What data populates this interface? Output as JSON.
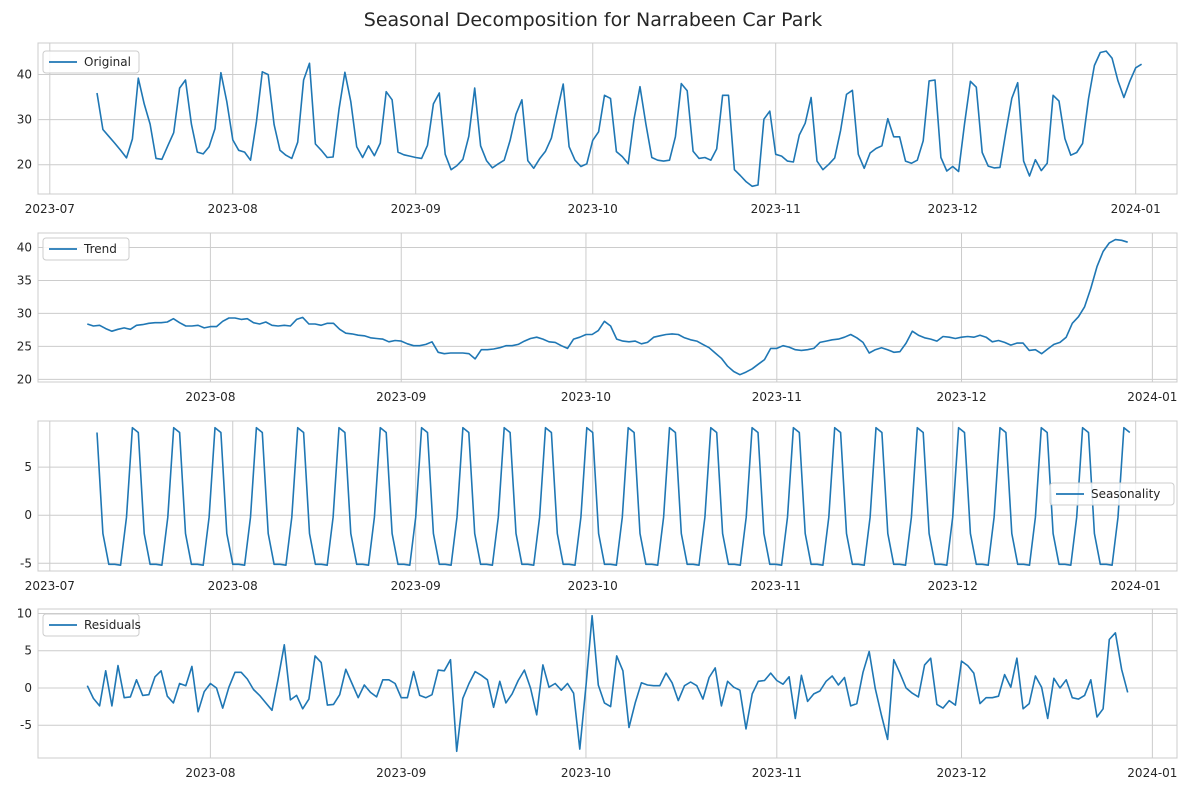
{
  "title": "Seasonal Decomposition for Narrabeen Car Park",
  "colors": {
    "line": "#1f77b4"
  },
  "chart_data": [
    {
      "type": "line",
      "name": "original",
      "legend": "Original",
      "legend_position": "upper-left",
      "grid": true,
      "xlim": [
        "2023-06-29",
        "2024-01-08"
      ],
      "ylim": [
        13.5,
        47
      ],
      "yticks": [
        20,
        30,
        40
      ],
      "xticks": [
        "2023-07-01",
        "2023-08-01",
        "2023-09-01",
        "2023-10-01",
        "2023-11-01",
        "2023-12-01",
        "2024-01-01"
      ],
      "xtick_labels": [
        "2023-07",
        "2023-08",
        "2023-09",
        "2023-10",
        "2023-11",
        "2023-12",
        "2024-01"
      ],
      "x_start": "2023-07-09",
      "values": [
        35.9,
        27.8,
        26.3,
        24.8,
        23.2,
        21.5,
        25.7,
        39.2,
        33.5,
        29.0,
        21.4,
        21.2,
        24.2,
        27.1,
        37.0,
        38.8,
        29.0,
        22.8,
        22.4,
        24.0,
        28.0,
        40.4,
        34.0,
        25.5,
        23.2,
        22.8,
        21.0,
        29.5,
        40.6,
        40.0,
        28.9,
        23.2,
        22.1,
        21.4,
        25.0,
        38.8,
        42.5,
        24.6,
        23.2,
        21.6,
        21.7,
        32.3,
        40.5,
        34.0,
        24.0,
        21.6,
        24.2,
        22.0,
        24.8,
        36.2,
        34.4,
        22.8,
        22.2,
        21.9,
        21.6,
        21.4,
        24.3,
        33.5,
        35.9,
        22.3,
        18.9,
        19.8,
        21.2,
        26.3,
        37.0,
        24.2,
        20.9,
        19.3,
        20.2,
        21.0,
        25.4,
        31.2,
        34.4,
        20.9,
        19.2,
        21.3,
        23.0,
        25.9,
        32.0,
        37.9,
        24.0,
        21.0,
        19.6,
        20.2,
        25.4,
        27.3,
        35.4,
        34.7,
        22.9,
        21.8,
        20.2,
        30.2,
        37.3,
        29.0,
        21.6,
        21.0,
        20.8,
        21.0,
        26.2,
        38.0,
        36.4,
        23.0,
        21.4,
        21.6,
        21.0,
        23.5,
        35.4,
        35.4,
        18.9,
        17.6,
        16.2,
        15.2,
        15.5,
        30.1,
        31.9,
        22.3,
        21.9,
        20.8,
        20.6,
        26.6,
        29.2,
        34.9,
        20.8,
        18.9,
        20.1,
        21.5,
        27.6,
        35.6,
        36.5,
        22.3,
        19.2,
        22.6,
        23.6,
        24.2,
        30.2,
        26.2,
        26.2,
        20.8,
        20.3,
        21.0,
        25.3,
        38.6,
        38.8,
        21.6,
        18.6,
        19.6,
        18.5,
        29.0,
        38.5,
        37.2,
        22.7,
        19.7,
        19.3,
        19.4,
        27.3,
        34.7,
        38.2,
        20.8,
        17.5,
        21.1,
        18.7,
        20.3,
        35.4,
        34.1,
        25.8,
        22.1,
        22.7,
        24.7,
        34.6,
        42.0,
        44.9,
        45.2,
        43.6,
        38.6,
        34.9,
        38.5,
        41.5,
        42.3
      ]
    },
    {
      "type": "line",
      "name": "trend",
      "legend": "Trend",
      "legend_position": "upper-left",
      "grid": true,
      "xlim": [
        "2023-07-04",
        "2024-01-05"
      ],
      "ylim": [
        19.6,
        42.2
      ],
      "yticks": [
        20,
        25,
        30,
        35,
        40
      ],
      "xticks": [
        "2023-08-01",
        "2023-09-01",
        "2023-10-01",
        "2023-11-01",
        "2023-12-01",
        "2024-01-01"
      ],
      "xtick_labels": [
        "2023-08",
        "2023-09",
        "2023-10",
        "2023-11",
        "2023-12",
        "2024-01"
      ],
      "x_start": "2023-07-12",
      "values": [
        28.4,
        28.1,
        28.2,
        27.7,
        27.3,
        27.6,
        27.8,
        27.6,
        28.2,
        28.3,
        28.5,
        28.6,
        28.6,
        28.7,
        29.2,
        28.6,
        28.1,
        28.1,
        28.2,
        27.8,
        28.0,
        28.0,
        28.8,
        29.3,
        29.3,
        29.1,
        29.2,
        28.6,
        28.4,
        28.7,
        28.2,
        28.1,
        28.2,
        28.1,
        29.1,
        29.4,
        28.4,
        28.4,
        28.2,
        28.5,
        28.5,
        27.6,
        27.0,
        26.9,
        26.7,
        26.6,
        26.3,
        26.2,
        26.1,
        25.7,
        25.9,
        25.8,
        25.4,
        25.1,
        25.1,
        25.3,
        25.7,
        24.1,
        23.9,
        24.0,
        24.0,
        24.0,
        23.9,
        23.1,
        24.5,
        24.5,
        24.6,
        24.8,
        25.1,
        25.1,
        25.3,
        25.8,
        26.2,
        26.4,
        26.1,
        25.7,
        25.6,
        25.1,
        24.7,
        26.1,
        26.4,
        26.8,
        26.8,
        27.4,
        28.8,
        28.1,
        26.1,
        25.8,
        25.7,
        25.8,
        25.4,
        25.6,
        26.4,
        26.6,
        26.8,
        26.9,
        26.8,
        26.3,
        26.0,
        25.8,
        25.3,
        24.8,
        24.0,
        23.2,
        22.0,
        21.2,
        20.7,
        21.1,
        21.6,
        22.3,
        23.0,
        24.7,
        24.7,
        25.1,
        24.9,
        24.5,
        24.4,
        24.5,
        24.7,
        25.6,
        25.8,
        26.0,
        26.1,
        26.4,
        26.8,
        26.3,
        25.6,
        24.0,
        24.5,
        24.8,
        24.5,
        24.1,
        24.2,
        25.5,
        27.3,
        26.7,
        26.3,
        26.1,
        25.8,
        26.5,
        26.4,
        26.2,
        26.4,
        26.5,
        26.4,
        26.7,
        26.4,
        25.7,
        25.9,
        25.6,
        25.2,
        25.5,
        25.5,
        24.4,
        24.5,
        23.9,
        24.6,
        25.3,
        25.6,
        26.4,
        28.5,
        29.5,
        31.0,
        33.8,
        37.1,
        39.4,
        40.7,
        41.2,
        41.1,
        40.8
      ]
    },
    {
      "type": "line",
      "name": "seasonality",
      "legend": "Seasonality",
      "legend_position": "center-right",
      "grid": true,
      "xlim": [
        "2023-06-29",
        "2024-01-08"
      ],
      "ylim": [
        -5.8,
        9.8
      ],
      "yticks": [
        -5,
        0,
        5
      ],
      "xticks": [
        "2023-07-01",
        "2023-08-01",
        "2023-09-01",
        "2023-10-01",
        "2023-11-01",
        "2023-12-01",
        "2024-01-01"
      ],
      "xtick_labels": [
        "2023-07",
        "2023-08",
        "2023-09",
        "2023-10",
        "2023-11",
        "2023-12",
        "2024-01"
      ],
      "x_start": "2023-07-09",
      "period": [
        8.6,
        -1.9,
        -5.1,
        -5.1,
        -5.2,
        -0.2,
        9.1,
        8.6,
        -1.9,
        -5.1,
        -5.1,
        -5.2,
        -0.2,
        9.1
      ],
      "period_length": 7,
      "count": 176
    },
    {
      "type": "line",
      "name": "residuals",
      "legend": "Residuals",
      "legend_position": "upper-left",
      "grid": true,
      "xlim": [
        "2023-07-04",
        "2024-01-05"
      ],
      "ylim": [
        -9.4,
        10.6
      ],
      "yticks": [
        -5,
        0,
        5,
        10
      ],
      "xticks": [
        "2023-08-01",
        "2023-09-01",
        "2023-10-01",
        "2023-11-01",
        "2023-12-01",
        "2024-01-01"
      ],
      "xtick_labels": [
        "2023-08",
        "2023-09",
        "2023-10",
        "2023-11",
        "2023-12",
        "2024-01"
      ],
      "x_start": "2023-07-12",
      "values": [
        0.3,
        -1.4,
        -2.4,
        2.3,
        -2.4,
        3.0,
        -1.3,
        -1.2,
        1.1,
        -1.0,
        -0.9,
        1.5,
        2.3,
        -1.1,
        -2.0,
        0.6,
        0.3,
        2.9,
        -3.2,
        -0.5,
        0.6,
        0.0,
        -2.7,
        0.1,
        2.1,
        2.1,
        1.2,
        -0.2,
        -1.0,
        -2.0,
        -3.0,
        1.2,
        5.8,
        -1.6,
        -1.0,
        -2.8,
        -1.5,
        4.3,
        3.4,
        -2.3,
        -2.2,
        -0.9,
        2.5,
        0.6,
        -1.3,
        0.4,
        -0.6,
        -1.2,
        1.1,
        1.1,
        0.6,
        -1.3,
        -1.3,
        2.2,
        -1.0,
        -1.3,
        -0.9,
        2.4,
        2.3,
        3.8,
        -8.5,
        -1.4,
        0.6,
        2.2,
        1.7,
        1.1,
        -2.6,
        0.9,
        -2.0,
        -0.8,
        1.0,
        2.4,
        0.0,
        -3.6,
        3.1,
        0.1,
        0.6,
        -0.3,
        0.6,
        -0.7,
        -8.2,
        0.3,
        9.7,
        0.4,
        -2.0,
        -2.5,
        4.3,
        2.3,
        -5.3,
        -2.0,
        0.7,
        0.4,
        0.3,
        0.3,
        2.0,
        0.7,
        -1.7,
        0.3,
        0.8,
        0.3,
        -1.5,
        1.4,
        2.7,
        -2.4,
        0.9,
        0.1,
        -0.3,
        -5.5,
        -0.8,
        0.9,
        1.0,
        2.0,
        1.0,
        0.5,
        1.5,
        -4.1,
        1.7,
        -1.8,
        -0.8,
        -0.4,
        0.9,
        1.6,
        0.4,
        1.4,
        -2.4,
        -2.1,
        2.1,
        4.9,
        -0.1,
        -3.7,
        -6.9,
        3.8,
        2.0,
        0.0,
        -0.7,
        -1.2,
        3.1,
        4.0,
        -2.2,
        -2.7,
        -1.7,
        -2.3,
        3.6,
        3.0,
        2.0,
        -2.1,
        -1.3,
        -1.3,
        -1.1,
        1.8,
        0.1,
        4.0,
        -2.8,
        -2.1,
        1.6,
        0.1,
        -4.1,
        1.3,
        0.0,
        1.1,
        -1.3,
        -1.5,
        -1.0,
        1.1,
        -3.9,
        -2.8,
        6.5,
        7.4,
        2.5,
        -0.6
      ]
    }
  ]
}
